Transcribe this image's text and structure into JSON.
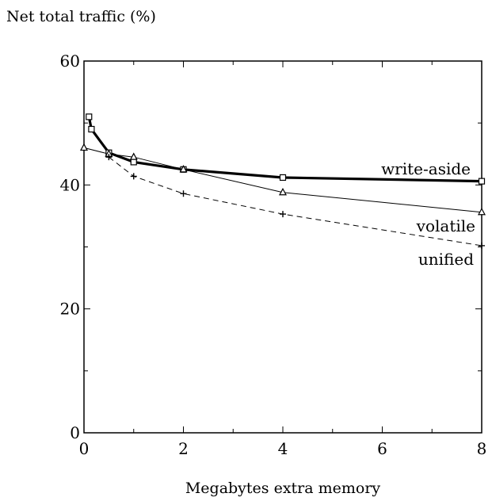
{
  "chart_data": {
    "type": "line",
    "ylabel": "Net total traffic (%)",
    "xlabel": "Megabytes extra memory",
    "xlim": [
      0,
      8
    ],
    "ylim": [
      0,
      60
    ],
    "x_ticks": [
      0,
      2,
      4,
      6,
      8
    ],
    "y_ticks": [
      0,
      20,
      40,
      60
    ],
    "grid": false,
    "legend": "direct labels at line ends",
    "series": [
      {
        "name": "write-aside",
        "style": "thick solid",
        "marker": "square",
        "color": "#000000",
        "x": [
          0.1,
          0.15,
          0.5,
          1,
          2,
          4,
          8
        ],
        "y": [
          51,
          49,
          45.2,
          43.7,
          42.5,
          41.2,
          40.6
        ]
      },
      {
        "name": "volatile",
        "style": "thin solid",
        "marker": "triangle",
        "color": "#000000",
        "x": [
          0,
          0.5,
          1,
          2,
          4,
          8
        ],
        "y": [
          46,
          45,
          44.5,
          42.5,
          38.8,
          35.6
        ]
      },
      {
        "name": "unified",
        "style": "dashed",
        "marker": "plus",
        "color": "#000000",
        "x": [
          0.5,
          1,
          2,
          4,
          8
        ],
        "y": [
          44.5,
          41.4,
          38.6,
          35.3,
          30.2
        ]
      }
    ]
  }
}
